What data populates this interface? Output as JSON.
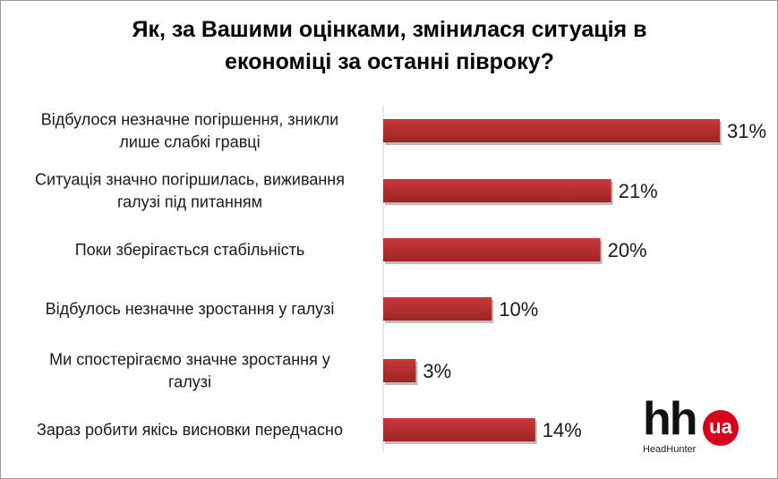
{
  "title_lines": [
    "Як, за Вашими оцінками, змінилася ситуація в",
    "економіці за останні півроку?"
  ],
  "colors": {
    "bar": "#c8393a",
    "bar_dark": "#9e2424",
    "brand_red": "#d6001c"
  },
  "logo": {
    "mark": "hh",
    "badge": "ua",
    "brand": "HeadHunter"
  },
  "chart_data": {
    "type": "bar",
    "orientation": "horizontal",
    "title": "Як, за Вашими оцінками, змінилася ситуація в економіці за останні півроку?",
    "categories": [
      [
        "Відбулося незначне погіршення, зникли",
        "лише слабкі гравці"
      ],
      [
        "Ситуація значно погіршилась, виживання",
        "галузі під питанням"
      ],
      [
        "Поки зберігається стабільність"
      ],
      [
        "Відбулось незначне зростання у галузі"
      ],
      [
        "Ми спостерігаємо значне зростання у",
        "галузі"
      ],
      [
        "Зараз робити якісь висновки передчасно"
      ]
    ],
    "values": [
      31,
      21,
      20,
      10,
      3,
      14
    ],
    "value_labels": [
      "31%",
      "21%",
      "20%",
      "10%",
      "3%",
      "14%"
    ],
    "unit": "%",
    "xlim": [
      0,
      31
    ],
    "grid": false,
    "legend": "none"
  }
}
